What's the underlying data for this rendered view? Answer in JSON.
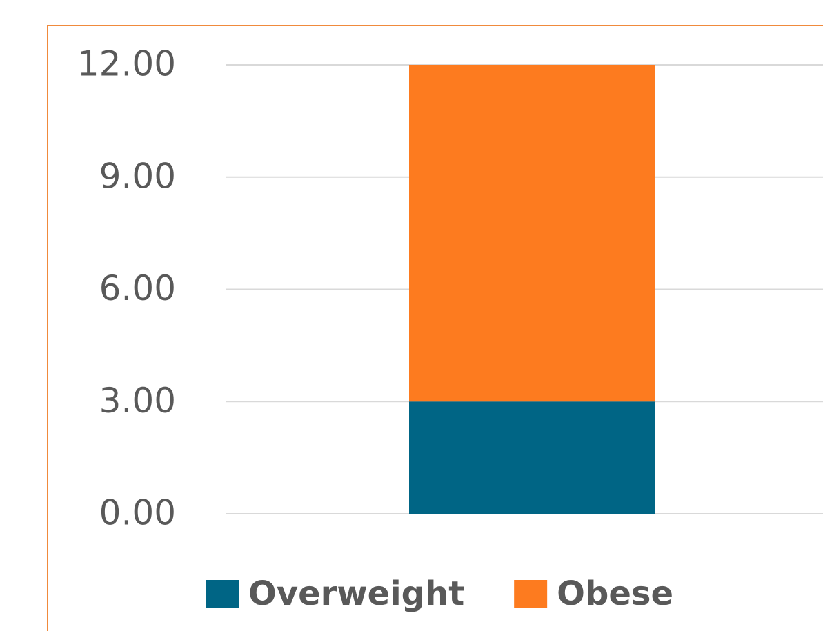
{
  "chart_data": {
    "type": "stacked_bar",
    "categories": [
      null
    ],
    "series": [
      {
        "name": "Overweight",
        "color": "#006585",
        "values": [
          3.0
        ]
      },
      {
        "name": "Obese",
        "color": "#fd7b1f",
        "values": [
          9.0
        ]
      }
    ],
    "ylim": [
      0,
      12
    ],
    "yticks": [
      {
        "value": 0,
        "label": "0.00"
      },
      {
        "value": 3,
        "label": "3.00"
      },
      {
        "value": 6,
        "label": "6.00"
      },
      {
        "value": 9,
        "label": "9.00"
      },
      {
        "value": 12,
        "label": "12.00"
      }
    ],
    "grid": true,
    "legend": "bottom"
  }
}
